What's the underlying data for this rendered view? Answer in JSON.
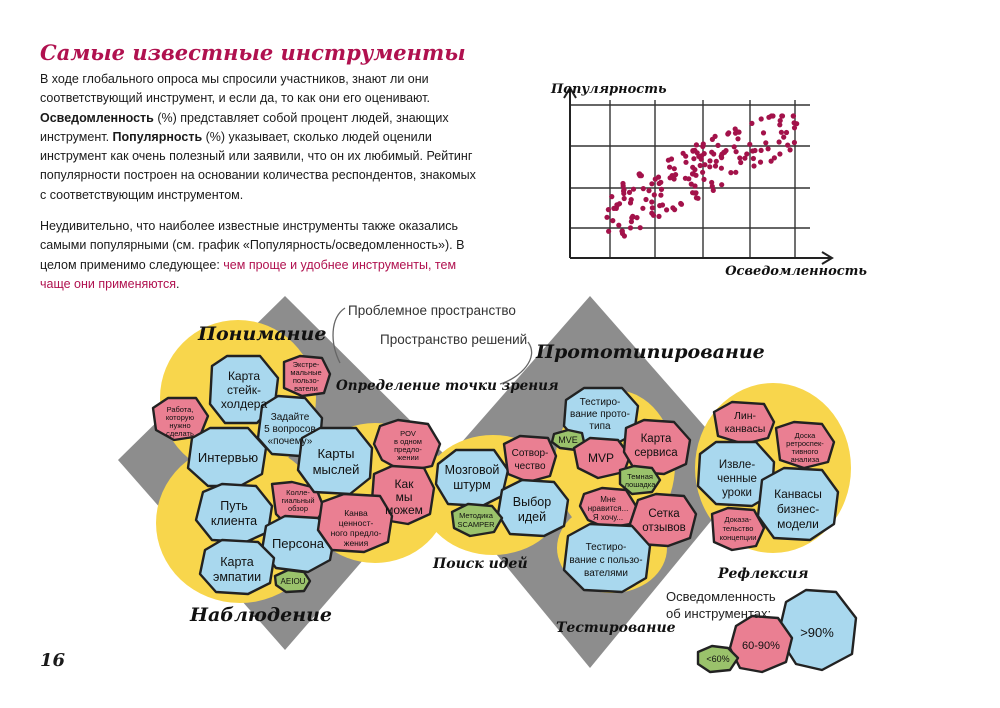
{
  "header": {
    "title": "Самые известные инструменты"
  },
  "intro": {
    "p1_a": "В ходе глобального опроса мы спросили участников, знают ли они соответствующий инструмент, и если да, то как они его оценивают. ",
    "p1_b": "Осведомленность",
    "p1_c": " (%) представляет собой процент людей, знающих инструмент. ",
    "p1_d": "Популярность",
    "p1_e": " (%) указывает, сколько людей оценили инструмент как очень полезный или заявили, что он их любимый. Рейтинг популярности построен на основании количества респондентов, знакомых с соответствующим инструментом.",
    "p2_a": "Неудивительно, что наиболее известные инструменты также оказались самыми популярными (см. график «Популярность/осведомленность»). В целом применимо следующее: ",
    "p2_b": "чем проще и удобнее инструменты, тем чаще они применяются",
    "p2_c": "."
  },
  "chart_data": {
    "type": "scatter",
    "ylabel": "Популярность",
    "xlabel": "Осведомленность",
    "grid": true,
    "point_color": "#a3124a"
  },
  "diagram": {
    "phases": {
      "understanding": "Понимание",
      "observation": "Наблюдение",
      "point_of_view": "Определение точки зрения",
      "ideation": "Поиск идей",
      "prototyping": "Прототипирование",
      "testing": "Тестирование",
      "reflection": "Рефлексия"
    },
    "callouts": {
      "problem_space": "Проблемное пространство",
      "solution_space": "Пространство решений"
    },
    "tools": {
      "stakeholder_map": "Карта стейк-холдера",
      "extreme_users": "Экстре-мальные пользо-ватели",
      "jobs_to_be_done": "Работа, которую нужно сделать",
      "five_whys": "Задайте 5 вопросов «почему»",
      "interview": "Интервью",
      "customer_journey": "Путь клиента",
      "peer_review": "Колле-гиальный обзор",
      "persona": "Персона",
      "empathy_map": "Карта эмпатии",
      "aeiou": "AEIOU",
      "mind_maps": "Карты мыслей",
      "pov": "POV в одном предло-жении",
      "how_might_we": "Как мы можем",
      "value_proposition": "Канва ценност-ного предло-жения",
      "brainstorming": "Мозговой штурм",
      "co_creation": "Сотвор-чество",
      "idea_selection": "Выбор идей",
      "scamper": "Методика SCAMPER",
      "prototype_testing": "Тестиро-вание прото-типа",
      "mve": "MVE",
      "mvp": "MVP",
      "service_map": "Карта сервиса",
      "dark_horse": "Темная лошадка",
      "i_like": "Мне нравится... Я хочу...",
      "feedback_grid": "Сетка отзывов",
      "user_testing": "Тестиро-вание с пользо-вателями",
      "lean_canvas": "Лин-канвасы",
      "retrospective_board": "Доска ретроспек-тивного анализа",
      "lessons_learned": "Извле-ченные уроки",
      "proof_of_concept": "Доказа-тельство концепции",
      "business_model_canvas": "Канвасы бизнес-модели"
    },
    "legend": {
      "title": "Осведомленность об инструментах:",
      "low": "<60%",
      "mid": "60-90%",
      "high": ">90%"
    }
  },
  "colors": {
    "blue": "#a9d8ee",
    "pink": "#ea7f92",
    "green": "#9ac26b",
    "yellow": "#f8d64c",
    "gray": "#8d8d8d",
    "accent": "#b0114f"
  },
  "footer": {
    "page": "16"
  }
}
